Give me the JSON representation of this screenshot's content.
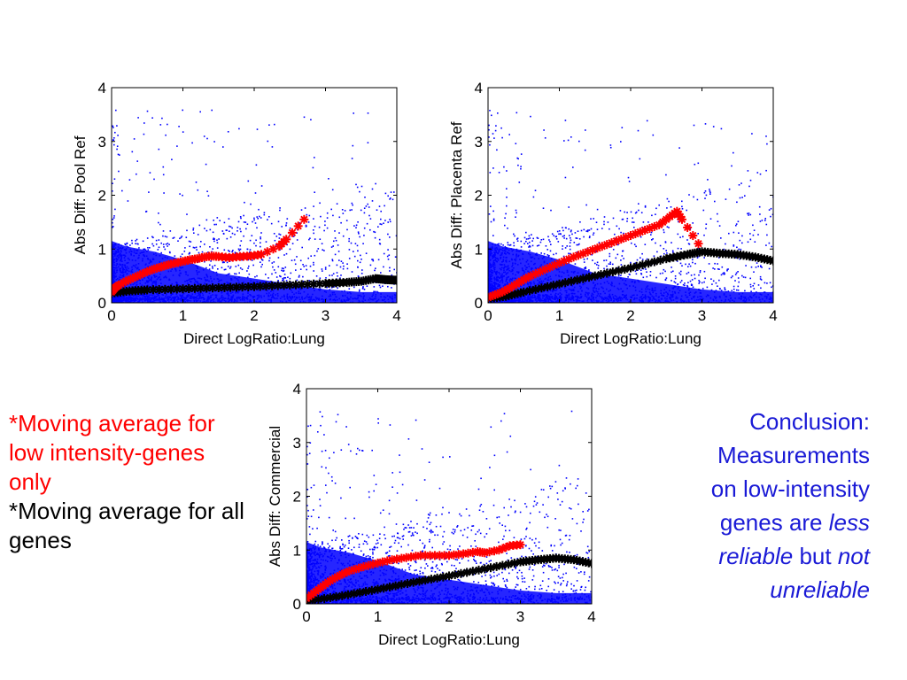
{
  "chart_data": [
    {
      "type": "scatter",
      "xlabel": "Direct LogRatio:Lung",
      "ylabel": "Abs Diff: Pool Ref",
      "xlim": [
        0,
        4
      ],
      "ylim": [
        0,
        4
      ],
      "xticks": [
        "0",
        "1",
        "2",
        "3",
        "4"
      ],
      "yticks": [
        "0",
        "1",
        "2",
        "3",
        "4"
      ],
      "series": [
        {
          "color": "#0000ff",
          "kind": "dense-scatter",
          "density": "concentrated near x<1.5, y<1.2"
        },
        {
          "color": "#ff0000",
          "marker": "asterisk",
          "x": [
            0.0,
            0.05,
            0.1,
            0.2,
            0.3,
            0.4,
            0.5,
            0.6,
            0.7,
            0.8,
            0.9,
            1.0,
            1.1,
            1.2,
            1.3,
            1.4,
            1.5,
            1.65,
            1.8,
            1.95,
            2.1,
            2.35,
            2.45,
            2.7
          ],
          "y": [
            0.2,
            0.28,
            0.33,
            0.4,
            0.46,
            0.52,
            0.58,
            0.63,
            0.67,
            0.71,
            0.74,
            0.77,
            0.8,
            0.82,
            0.85,
            0.87,
            0.86,
            0.84,
            0.86,
            0.87,
            0.9,
            1.05,
            1.18,
            1.55
          ]
        },
        {
          "color": "#000000",
          "marker": "asterisk",
          "x": [
            0.0,
            0.25,
            0.5,
            1.0,
            1.5,
            2.0,
            2.5,
            3.0,
            3.3,
            3.5,
            3.7,
            3.85,
            4.0
          ],
          "y": [
            0.18,
            0.22,
            0.24,
            0.26,
            0.28,
            0.3,
            0.33,
            0.36,
            0.38,
            0.4,
            0.45,
            0.43,
            0.42
          ]
        }
      ]
    },
    {
      "type": "scatter",
      "xlabel": "Direct LogRatio:Lung",
      "ylabel": "Abs Diff: Placenta Ref",
      "xlim": [
        0,
        4
      ],
      "ylim": [
        0,
        4
      ],
      "xticks": [
        "0",
        "1",
        "2",
        "3",
        "4"
      ],
      "yticks": [
        "0",
        "1",
        "2",
        "3",
        "4"
      ],
      "series": [
        {
          "color": "#0000ff",
          "kind": "dense-scatter",
          "density": "concentrated near x<1.5, y<1.2"
        },
        {
          "color": "#ff0000",
          "marker": "asterisk",
          "x": [
            0.0,
            0.1,
            0.2,
            0.3,
            0.4,
            0.5,
            0.6,
            0.8,
            1.0,
            1.2,
            1.4,
            1.6,
            1.8,
            2.0,
            2.2,
            2.4,
            2.55,
            2.65,
            2.72,
            2.95
          ],
          "y": [
            0.1,
            0.15,
            0.2,
            0.27,
            0.35,
            0.43,
            0.5,
            0.62,
            0.74,
            0.85,
            0.95,
            1.05,
            1.15,
            1.25,
            1.35,
            1.45,
            1.6,
            1.7,
            1.55,
            1.1
          ]
        },
        {
          "color": "#000000",
          "marker": "asterisk",
          "x": [
            0.0,
            0.25,
            0.5,
            1.0,
            1.5,
            2.0,
            2.5,
            2.8,
            3.0,
            3.25,
            3.5,
            3.75,
            4.0
          ],
          "y": [
            0.08,
            0.12,
            0.2,
            0.35,
            0.5,
            0.65,
            0.82,
            0.9,
            0.95,
            0.92,
            0.9,
            0.85,
            0.78
          ]
        }
      ]
    },
    {
      "type": "scatter",
      "xlabel": "Direct LogRatio:Lung",
      "ylabel": "Abs Diff: Commercial",
      "xlim": [
        0,
        4
      ],
      "ylim": [
        0,
        4
      ],
      "xticks": [
        "0",
        "1",
        "2",
        "3",
        "4"
      ],
      "yticks": [
        "0",
        "1",
        "2",
        "3",
        "4"
      ],
      "series": [
        {
          "color": "#0000ff",
          "kind": "dense-scatter",
          "density": "concentrated near x<1.5, y<1.2"
        },
        {
          "color": "#ff0000",
          "marker": "asterisk",
          "x": [
            0.0,
            0.1,
            0.2,
            0.3,
            0.4,
            0.5,
            0.6,
            0.8,
            1.0,
            1.2,
            1.4,
            1.6,
            1.8,
            2.0,
            2.2,
            2.4,
            2.5,
            2.7,
            2.85,
            3.0
          ],
          "y": [
            0.1,
            0.2,
            0.3,
            0.4,
            0.48,
            0.55,
            0.61,
            0.69,
            0.76,
            0.82,
            0.86,
            0.9,
            0.9,
            0.9,
            0.93,
            0.97,
            0.95,
            1.0,
            1.08,
            1.1
          ]
        },
        {
          "color": "#000000",
          "marker": "asterisk",
          "x": [
            0.0,
            0.5,
            1.0,
            1.5,
            2.0,
            2.5,
            3.0,
            3.25,
            3.5,
            3.75,
            4.0
          ],
          "y": [
            0.05,
            0.15,
            0.27,
            0.4,
            0.52,
            0.65,
            0.78,
            0.82,
            0.85,
            0.82,
            0.75
          ]
        }
      ]
    }
  ],
  "legend": {
    "red_text": "*Moving average for low intensity-genes only",
    "black_text": "*Moving average for all genes"
  },
  "conclusion": {
    "line1": "Conclusion:",
    "line2": "Measurements",
    "line3": "on low-intensity",
    "line4a": "genes are ",
    "line4b": "less",
    "line5a": "reliable",
    "line5b": " but ",
    "line5c": "not",
    "line6": "unreliable"
  }
}
